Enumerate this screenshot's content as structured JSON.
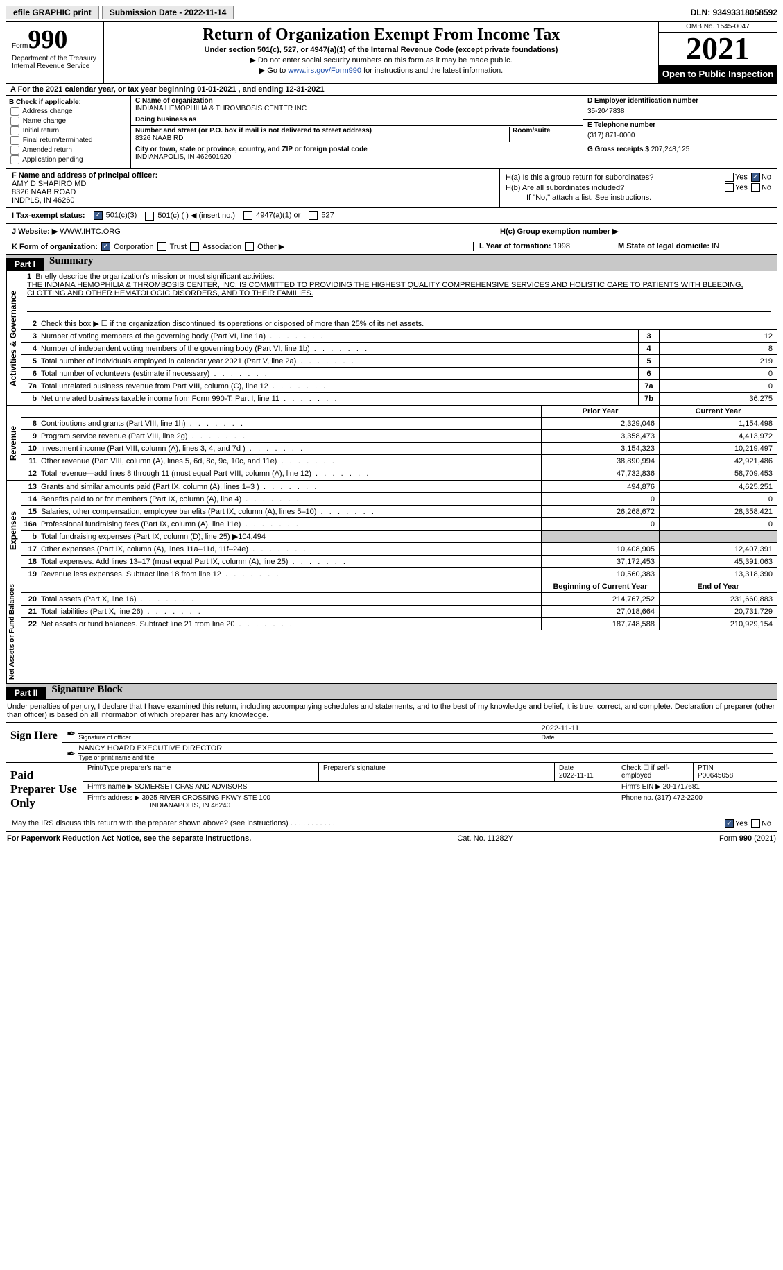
{
  "topbar": {
    "efile": "efile GRAPHIC print",
    "submission_label": "Submission Date - ",
    "submission_date": "2022-11-14",
    "dln_label": "DLN: ",
    "dln": "93493318058592"
  },
  "header": {
    "form_label": "Form",
    "form_number": "990",
    "dept": "Department of the Treasury\nInternal Revenue Service",
    "title": "Return of Organization Exempt From Income Tax",
    "subtitle": "Under section 501(c), 527, or 4947(a)(1) of the Internal Revenue Code (except private foundations)",
    "note1": "▶ Do not enter social security numbers on this form as it may be made public.",
    "note2_pre": "▶ Go to ",
    "note2_link": "www.irs.gov/Form990",
    "note2_post": " for instructions and the latest information.",
    "omb": "OMB No. 1545-0047",
    "year": "2021",
    "inspection": "Open to Public Inspection"
  },
  "sectionA": {
    "text": "A For the 2021 calendar year, or tax year beginning ",
    "begin": "01-01-2021",
    "mid": " , and ending ",
    "end": "12-31-2021"
  },
  "colB": {
    "header": "B Check if applicable:",
    "items": [
      "Address change",
      "Name change",
      "Initial return",
      "Final return/terminated",
      "Amended return",
      "Application pending"
    ]
  },
  "colC": {
    "name_label": "C Name of organization",
    "name": "INDIANA HEMOPHILIA & THROMBOSIS CENTER INC",
    "dba_label": "Doing business as",
    "dba": "",
    "addr_label": "Number and street (or P.O. box if mail is not delivered to street address)",
    "room_label": "Room/suite",
    "addr": "8326 NAAB RD",
    "city_label": "City or town, state or province, country, and ZIP or foreign postal code",
    "city": "INDIANAPOLIS, IN  462601920"
  },
  "colD": {
    "ein_label": "D Employer identification number",
    "ein": "35-2047838",
    "phone_label": "E Telephone number",
    "phone": "(317) 871-0000",
    "gross_label": "G Gross receipts $ ",
    "gross": "207,248,125"
  },
  "sectionF": {
    "label": "F Name and address of principal officer:",
    "name": "AMY D SHAPIRO MD",
    "addr1": "8326 NAAB ROAD",
    "addr2": "INDPLS, IN  46260"
  },
  "sectionH": {
    "ha_label": "H(a)  Is this a group return for subordinates?",
    "ha_yes": "Yes",
    "ha_no": "No",
    "ha_checked": "No",
    "hb_label": "H(b)  Are all subordinates included?",
    "hb_yes": "Yes",
    "hb_no": "No",
    "hb_note": "If \"No,\" attach a list. See instructions.",
    "hc_label": "H(c)  Group exemption number ▶"
  },
  "sectionI": {
    "label": "I   Tax-exempt status:",
    "opt1": "501(c)(3)",
    "opt1_checked": true,
    "opt2": "501(c) (   ) ◀ (insert no.)",
    "opt3": "4947(a)(1) or",
    "opt4": "527"
  },
  "sectionJ": {
    "label": "J   Website: ▶",
    "value": "WWW.IHTC.ORG"
  },
  "sectionK": {
    "label": "K Form of organization:",
    "opts": [
      "Corporation",
      "Trust",
      "Association",
      "Other ▶"
    ],
    "checked": 0,
    "l_label": "L Year of formation: ",
    "l_val": "1998",
    "m_label": "M State of legal domicile: ",
    "m_val": "IN"
  },
  "parts": {
    "p1_num": "Part I",
    "p1_title": "Summary",
    "p2_num": "Part II",
    "p2_title": "Signature Block"
  },
  "summary": {
    "vlabels": [
      "Activities & Governance",
      "Revenue",
      "Expenses",
      "Net Assets or Fund Balances"
    ],
    "line1_label": "Briefly describe the organization's mission or most significant activities:",
    "mission": "THE INDIANA HEMOPHILIA & THROMBOSIS CENTER, INC. IS COMMITTED TO PROVIDING THE HIGHEST QUALITY COMPREHENSIVE SERVICES AND HOLISTIC CARE TO PATIENTS WITH BLEEDING, CLOTTING AND OTHER HEMATOLOGIC DISORDERS, AND TO THEIR FAMILIES.",
    "line2": "Check this box ▶ ☐ if the organization discontinued its operations or disposed of more than 25% of its net assets.",
    "prior_hdr": "Prior Year",
    "current_hdr": "Current Year",
    "begin_hdr": "Beginning of Current Year",
    "end_hdr": "End of Year",
    "gov_lines": [
      {
        "n": "3",
        "t": "Number of voting members of the governing body (Part VI, line 1a)",
        "box": "3",
        "v": "12"
      },
      {
        "n": "4",
        "t": "Number of independent voting members of the governing body (Part VI, line 1b)",
        "box": "4",
        "v": "8"
      },
      {
        "n": "5",
        "t": "Total number of individuals employed in calendar year 2021 (Part V, line 2a)",
        "box": "5",
        "v": "219"
      },
      {
        "n": "6",
        "t": "Total number of volunteers (estimate if necessary)",
        "box": "6",
        "v": "0"
      },
      {
        "n": "7a",
        "t": "Total unrelated business revenue from Part VIII, column (C), line 12",
        "box": "7a",
        "v": "0"
      },
      {
        "n": "b",
        "t": "Net unrelated business taxable income from Form 990-T, Part I, line 11",
        "box": "7b",
        "v": "36,275"
      }
    ],
    "rev_lines": [
      {
        "n": "8",
        "t": "Contributions and grants (Part VIII, line 1h)",
        "p": "2,329,046",
        "c": "1,154,498"
      },
      {
        "n": "9",
        "t": "Program service revenue (Part VIII, line 2g)",
        "p": "3,358,473",
        "c": "4,413,972"
      },
      {
        "n": "10",
        "t": "Investment income (Part VIII, column (A), lines 3, 4, and 7d )",
        "p": "3,154,323",
        "c": "10,219,497"
      },
      {
        "n": "11",
        "t": "Other revenue (Part VIII, column (A), lines 5, 6d, 8c, 9c, 10c, and 11e)",
        "p": "38,890,994",
        "c": "42,921,486"
      },
      {
        "n": "12",
        "t": "Total revenue—add lines 8 through 11 (must equal Part VIII, column (A), line 12)",
        "p": "47,732,836",
        "c": "58,709,453"
      }
    ],
    "exp_lines": [
      {
        "n": "13",
        "t": "Grants and similar amounts paid (Part IX, column (A), lines 1–3 )",
        "p": "494,876",
        "c": "4,625,251"
      },
      {
        "n": "14",
        "t": "Benefits paid to or for members (Part IX, column (A), line 4)",
        "p": "0",
        "c": "0"
      },
      {
        "n": "15",
        "t": "Salaries, other compensation, employee benefits (Part IX, column (A), lines 5–10)",
        "p": "26,268,672",
        "c": "28,358,421"
      },
      {
        "n": "16a",
        "t": "Professional fundraising fees (Part IX, column (A), line 11e)",
        "p": "0",
        "c": "0"
      },
      {
        "n": "b",
        "t": "Total fundraising expenses (Part IX, column (D), line 25) ▶104,494",
        "shade": true
      },
      {
        "n": "17",
        "t": "Other expenses (Part IX, column (A), lines 11a–11d, 11f–24e)",
        "p": "10,408,905",
        "c": "12,407,391"
      },
      {
        "n": "18",
        "t": "Total expenses. Add lines 13–17 (must equal Part IX, column (A), line 25)",
        "p": "37,172,453",
        "c": "45,391,063"
      },
      {
        "n": "19",
        "t": "Revenue less expenses. Subtract line 18 from line 12",
        "p": "10,560,383",
        "c": "13,318,390"
      }
    ],
    "net_lines": [
      {
        "n": "20",
        "t": "Total assets (Part X, line 16)",
        "p": "214,767,252",
        "c": "231,660,883"
      },
      {
        "n": "21",
        "t": "Total liabilities (Part X, line 26)",
        "p": "27,018,664",
        "c": "20,731,729"
      },
      {
        "n": "22",
        "t": "Net assets or fund balances. Subtract line 21 from line 20",
        "p": "187,748,588",
        "c": "210,929,154"
      }
    ]
  },
  "signature": {
    "penalty": "Under penalties of perjury, I declare that I have examined this return, including accompanying schedules and statements, and to the best of my knowledge and belief, it is true, correct, and complete. Declaration of preparer (other than officer) is based on all information of which preparer has any knowledge.",
    "sign_here": "Sign Here",
    "sig_officer": "Signature of officer",
    "sig_date": "2022-11-11",
    "date_label": "Date",
    "name_title": "NANCY HOARD  EXECUTIVE DIRECTOR",
    "name_title_label": "Type or print name and title",
    "paid": "Paid Preparer Use Only",
    "prep_name_label": "Print/Type preparer's name",
    "prep_sig_label": "Preparer's signature",
    "prep_date_label": "Date",
    "prep_date": "2022-11-11",
    "check_if": "Check ☐ if self-employed",
    "ptin_label": "PTIN",
    "ptin": "P00645058",
    "firm_name_label": "Firm's name     ▶ ",
    "firm_name": "SOMERSET CPAS AND ADVISORS",
    "firm_ein_label": "Firm's EIN ▶ ",
    "firm_ein": "20-1717681",
    "firm_addr_label": "Firm's address ▶ ",
    "firm_addr1": "3925 RIVER CROSSING PKWY STE 100",
    "firm_addr2": "INDIANAPOLIS, IN  46240",
    "firm_phone_label": "Phone no. ",
    "firm_phone": "(317) 472-2200"
  },
  "irs_discuss": {
    "text": "May the IRS discuss this return with the preparer shown above? (see instructions)",
    "yes": "Yes",
    "no": "No",
    "checked": "Yes"
  },
  "footer": {
    "left": "For Paperwork Reduction Act Notice, see the separate instructions.",
    "mid": "Cat. No. 11282Y",
    "right": "Form 990 (2021)"
  }
}
